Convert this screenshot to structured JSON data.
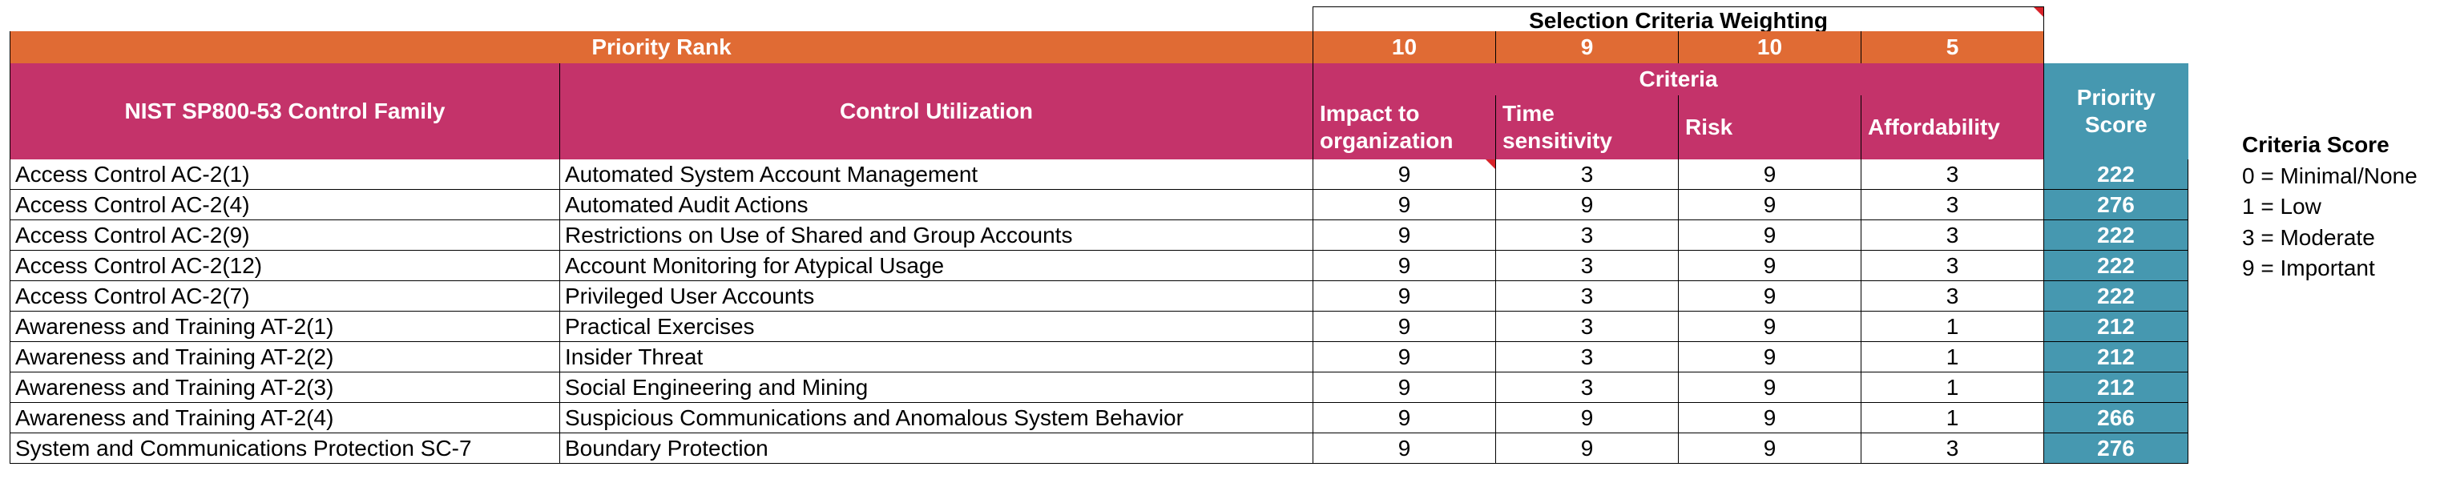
{
  "header": {
    "selection_criteria_weighting": "Selection Criteria Weighting",
    "priority_rank": "Priority Rank",
    "weights": [
      "10",
      "9",
      "10",
      "5"
    ],
    "criteria": "Criteria",
    "control_family": "NIST SP800-53 Control Family",
    "control_utilization": "Control Utilization",
    "impact": "Impact to organization",
    "time": "Time sensitivity",
    "risk": "Risk",
    "affordability": "Affordability",
    "priority_score": "Priority Score"
  },
  "rows": [
    {
      "family": "Access Control AC-2(1)",
      "utilization": "Automated System Account Management",
      "impact": "9",
      "time": "3",
      "risk": "9",
      "afford": "3",
      "score": "222"
    },
    {
      "family": "Access Control AC-2(4)",
      "utilization": "Automated Audit Actions",
      "impact": "9",
      "time": "9",
      "risk": "9",
      "afford": "3",
      "score": "276"
    },
    {
      "family": "Access Control AC-2(9)",
      "utilization": "Restrictions on Use of Shared and Group Accounts",
      "impact": "9",
      "time": "3",
      "risk": "9",
      "afford": "3",
      "score": "222"
    },
    {
      "family": "Access Control AC-2(12)",
      "utilization": "Account Monitoring for Atypical Usage",
      "impact": "9",
      "time": "3",
      "risk": "9",
      "afford": "3",
      "score": "222"
    },
    {
      "family": "Access Control AC-2(7)",
      "utilization": "Privileged User Accounts",
      "impact": "9",
      "time": "3",
      "risk": "9",
      "afford": "3",
      "score": "222"
    },
    {
      "family": "Awareness and Training AT-2(1)",
      "utilization": "Practical Exercises",
      "impact": "9",
      "time": "3",
      "risk": "9",
      "afford": "1",
      "score": "212"
    },
    {
      "family": "Awareness and Training AT-2(2)",
      "utilization": "Insider Threat",
      "impact": "9",
      "time": "3",
      "risk": "9",
      "afford": "1",
      "score": "212"
    },
    {
      "family": "Awareness and Training AT-2(3)",
      "utilization": "Social Engineering and Mining",
      "impact": "9",
      "time": "3",
      "risk": "9",
      "afford": "1",
      "score": "212"
    },
    {
      "family": "Awareness and Training AT-2(4)",
      "utilization": "Suspicious Communications and Anomalous System Behavior",
      "impact": "9",
      "time": "9",
      "risk": "9",
      "afford": "1",
      "score": "266"
    },
    {
      "family": "System and Communications Protection SC-7",
      "utilization": "Boundary Protection",
      "impact": "9",
      "time": "9",
      "risk": "9",
      "afford": "3",
      "score": "276"
    }
  ],
  "legend": {
    "title": "Criteria Score",
    "items": [
      "0 = Minimal/None",
      "1 = Low",
      "3 = Moderate",
      "9 = Important"
    ]
  },
  "colors": {
    "priority_rank_bg": "#e06b34",
    "header_bg": "#c4336a",
    "priority_score_bg": "#4698b0",
    "comment_marker": "#d8232a"
  }
}
